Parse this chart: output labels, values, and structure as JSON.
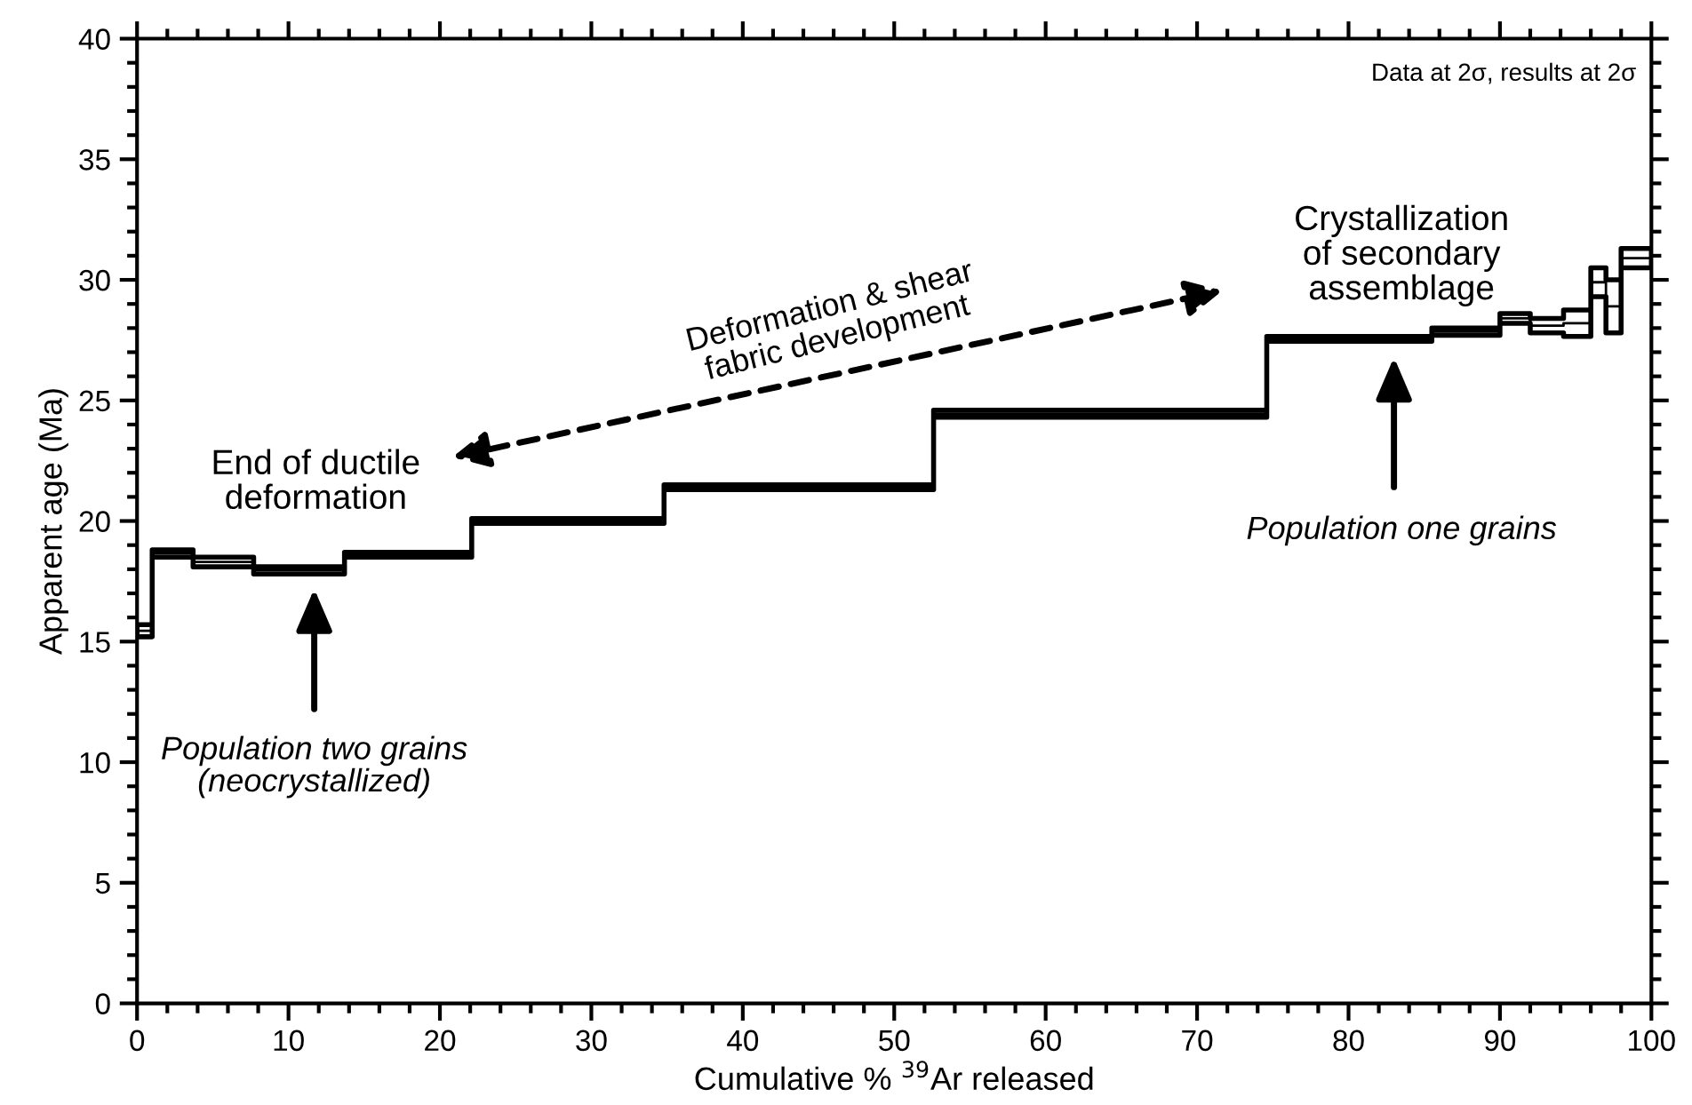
{
  "chart_data": {
    "type": "step",
    "xlabel": "Cumulative % $^{39}$Ar released",
    "ylabel": "Apparent age (Ma)",
    "x": [
      0,
      1.0,
      3.7,
      7.7,
      13.7,
      22.1,
      34.8,
      52.6,
      74.6,
      85.5,
      90,
      92,
      94.2,
      96,
      97,
      98,
      100
    ],
    "series": [
      {
        "color": "#000000",
        "values": [
          15.45,
          18.65,
          18.3,
          17.95,
          18.6,
          20.0,
          21.4,
          24.45,
          27.55,
          27.85,
          28.4,
          28.1,
          28.2,
          29.9,
          28.9,
          30.9,
          30.9
        ],
        "lower": [
          15.2,
          18.5,
          18.1,
          17.8,
          18.5,
          19.9,
          21.3,
          24.3,
          27.45,
          27.7,
          28.2,
          27.8,
          27.65,
          29.3,
          27.8,
          30.5,
          30.5
        ],
        "upper": [
          15.7,
          18.8,
          18.5,
          18.1,
          18.7,
          20.1,
          21.5,
          24.6,
          27.65,
          28.0,
          28.6,
          28.4,
          28.75,
          30.5,
          30.0,
          31.3,
          31.3
        ]
      }
    ],
    "xlim": [
      0,
      100
    ],
    "ylim": [
      0,
      40
    ],
    "xticks": [
      0,
      {
        "value": 2,
        "label": null
      },
      {
        "value": 4,
        "label": null
      },
      {
        "value": 6,
        "label": null
      },
      {
        "value": 8,
        "label": null
      },
      10,
      {
        "value": 12,
        "label": null
      },
      {
        "value": 14,
        "label": null
      },
      {
        "value": 16,
        "label": null
      },
      {
        "value": 18,
        "label": null
      },
      20,
      {
        "value": 22,
        "label": null
      },
      {
        "value": 24,
        "label": null
      },
      {
        "value": 26,
        "label": null
      },
      {
        "value": 28,
        "label": null
      },
      30,
      {
        "value": 32,
        "label": null
      },
      {
        "value": 34,
        "label": null
      },
      {
        "value": 36,
        "label": null
      },
      {
        "value": 38,
        "label": null
      },
      40,
      {
        "value": 42,
        "label": null
      },
      {
        "value": 44,
        "label": null
      },
      {
        "value": 46,
        "label": null
      },
      {
        "value": 48,
        "label": null
      },
      50,
      {
        "value": 52,
        "label": null
      },
      {
        "value": 54,
        "label": null
      },
      {
        "value": 56,
        "label": null
      },
      {
        "value": 58,
        "label": null
      },
      60,
      {
        "value": 62,
        "label": null
      },
      {
        "value": 64,
        "label": null
      },
      {
        "value": 66,
        "label": null
      },
      {
        "value": 68,
        "label": null
      },
      70,
      {
        "value": 72,
        "label": null
      },
      {
        "value": 74,
        "label": null
      },
      {
        "value": 76,
        "label": null
      },
      {
        "value": 78,
        "label": null
      },
      80,
      {
        "value": 82,
        "label": null
      },
      {
        "value": 84,
        "label": null
      },
      {
        "value": 86,
        "label": null
      },
      {
        "value": 88,
        "label": null
      },
      90,
      {
        "value": 92,
        "label": null
      },
      {
        "value": 94,
        "label": null
      },
      {
        "value": 96,
        "label": null
      },
      {
        "value": 98,
        "label": null
      },
      100
    ],
    "yticks": [
      0,
      {
        "value": 1,
        "label": null
      },
      {
        "value": 2,
        "label": null
      },
      {
        "value": 3,
        "label": null
      },
      {
        "value": 4,
        "label": null
      },
      5,
      {
        "value": 6,
        "label": null
      },
      {
        "value": 7,
        "label": null
      },
      {
        "value": 8,
        "label": null
      },
      {
        "value": 9,
        "label": null
      },
      10,
      {
        "value": 11,
        "label": null
      },
      {
        "value": 12,
        "label": null
      },
      {
        "value": 13,
        "label": null
      },
      {
        "value": 14,
        "label": null
      },
      15,
      {
        "value": 16,
        "label": null
      },
      {
        "value": 17,
        "label": null
      },
      {
        "value": 18,
        "label": null
      },
      {
        "value": 19,
        "label": null
      },
      20,
      {
        "value": 21,
        "label": null
      },
      {
        "value": 22,
        "label": null
      },
      {
        "value": 23,
        "label": null
      },
      {
        "value": 24,
        "label": null
      },
      25,
      {
        "value": 26,
        "label": null
      },
      {
        "value": 27,
        "label": null
      },
      {
        "value": 28,
        "label": null
      },
      {
        "value": 29,
        "label": null
      },
      30,
      {
        "value": 31,
        "label": null
      },
      {
        "value": 32,
        "label": null
      },
      {
        "value": 33,
        "label": null
      },
      {
        "value": 34,
        "label": null
      },
      35,
      {
        "value": 36,
        "label": null
      },
      {
        "value": 37,
        "label": null
      },
      {
        "value": 38,
        "label": null
      },
      {
        "value": 39,
        "label": null
      },
      40
    ],
    "annotations": [
      "Data at 2σ, results at 2σ",
      "End of ductile\ndeformation",
      "Deformation & shear\nfabric development",
      "Crystallization\nof secondary\nassemblage",
      "Population two grains\n(neocrystallized)",
      "Population one grains"
    ],
    "grid": false,
    "legend": false
  }
}
